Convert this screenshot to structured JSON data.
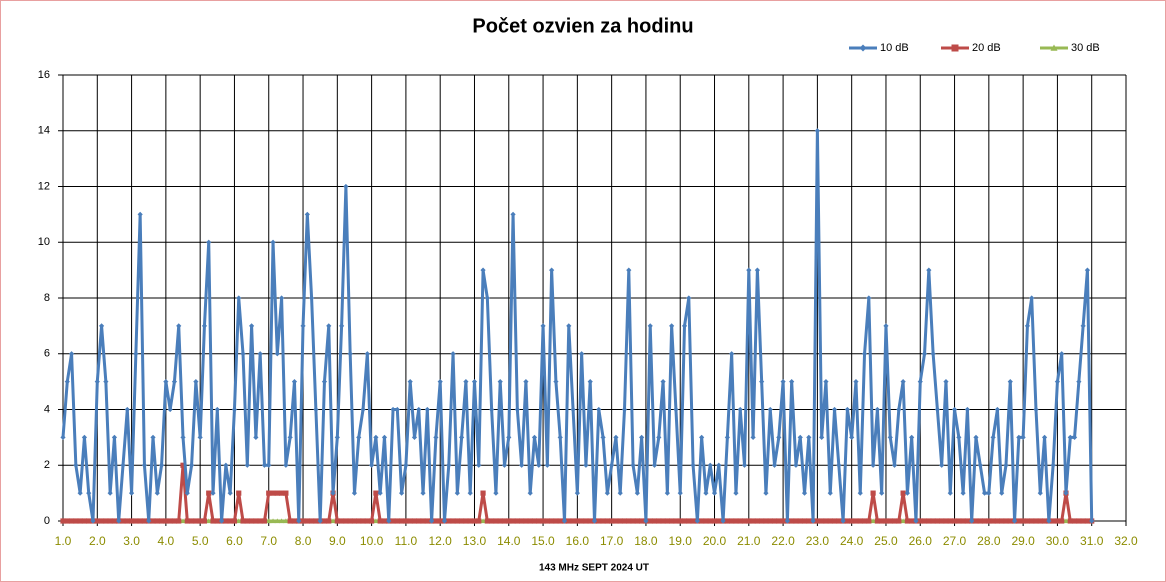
{
  "chart_data": {
    "type": "line",
    "title": "Počet ozvien za hodinu",
    "x_label": "143 MHz SEPT  2024  UT",
    "legend": "top-right",
    "grid": true,
    "xlim": [
      1,
      32
    ],
    "ylim": [
      0,
      16
    ],
    "yticks": [
      0,
      2,
      4,
      6,
      8,
      10,
      12,
      14,
      16
    ],
    "xticks": [
      {
        "value": 1,
        "label": "1.0"
      },
      {
        "value": 2,
        "label": "2.0"
      },
      {
        "value": 3,
        "label": "3.0"
      },
      {
        "value": 4,
        "label": "4.0"
      },
      {
        "value": 5,
        "label": "5.0"
      },
      {
        "value": 6,
        "label": "6.0"
      },
      {
        "value": 7,
        "label": "7.0"
      },
      {
        "value": 8,
        "label": "8.0"
      },
      {
        "value": 9,
        "label": "9.0"
      },
      {
        "value": 10,
        "label": "10.0"
      },
      {
        "value": 11,
        "label": "11.0"
      },
      {
        "value": 12,
        "label": "12.0"
      },
      {
        "value": 13,
        "label": "13.0"
      },
      {
        "value": 14,
        "label": "14.0"
      },
      {
        "value": 15,
        "label": "15.0"
      },
      {
        "value": 16,
        "label": "16.0"
      },
      {
        "value": 17,
        "label": "17.0"
      },
      {
        "value": 18,
        "label": "18.0"
      },
      {
        "value": 19,
        "label": "19.0"
      },
      {
        "value": 20,
        "label": "20.0"
      },
      {
        "value": 21,
        "label": "21.0"
      },
      {
        "value": 22,
        "label": "22.0"
      },
      {
        "value": 23,
        "label": "23.0"
      },
      {
        "value": 24,
        "label": "24.0"
      },
      {
        "value": 25,
        "label": "25.0"
      },
      {
        "value": 26,
        "label": "26.0"
      },
      {
        "value": 27,
        "label": "27.0"
      },
      {
        "value": 28,
        "label": "28.0"
      },
      {
        "value": 29,
        "label": "29.0"
      },
      {
        "value": 30,
        "label": "30.0"
      },
      {
        "value": 31,
        "label": "31.0"
      },
      {
        "value": 32,
        "label": "32.0"
      }
    ],
    "x": [
      1,
      1.125,
      1.25,
      1.375,
      1.5,
      1.625,
      1.75,
      1.875,
      2,
      2.125,
      2.25,
      2.375,
      2.5,
      2.625,
      2.75,
      2.875,
      3,
      3.125,
      3.25,
      3.375,
      3.5,
      3.625,
      3.75,
      3.875,
      4,
      4.125,
      4.25,
      4.375,
      4.5,
      4.625,
      4.75,
      4.875,
      5,
      5.125,
      5.25,
      5.375,
      5.5,
      5.625,
      5.75,
      5.875,
      6,
      6.125,
      6.25,
      6.375,
      6.5,
      6.625,
      6.75,
      6.875,
      7,
      7.125,
      7.25,
      7.375,
      7.5,
      7.625,
      7.75,
      7.875,
      8,
      8.125,
      8.25,
      8.375,
      8.5,
      8.625,
      8.75,
      8.875,
      9,
      9.125,
      9.25,
      9.375,
      9.5,
      9.625,
      9.75,
      9.875,
      10,
      10.125,
      10.25,
      10.375,
      10.5,
      10.625,
      10.75,
      10.875,
      11,
      11.125,
      11.25,
      11.375,
      11.5,
      11.625,
      11.75,
      11.875,
      12,
      12.125,
      12.25,
      12.375,
      12.5,
      12.625,
      12.75,
      12.875,
      13,
      13.125,
      13.25,
      13.375,
      13.5,
      13.625,
      13.75,
      13.875,
      14,
      14.125,
      14.25,
      14.375,
      14.5,
      14.625,
      14.75,
      14.875,
      15,
      15.125,
      15.25,
      15.375,
      15.5,
      15.625,
      15.75,
      15.875,
      16,
      16.125,
      16.25,
      16.375,
      16.5,
      16.625,
      16.75,
      16.875,
      17,
      17.125,
      17.25,
      17.375,
      17.5,
      17.625,
      17.75,
      17.875,
      18,
      18.125,
      18.25,
      18.375,
      18.5,
      18.625,
      18.75,
      18.875,
      19,
      19.125,
      19.25,
      19.375,
      19.5,
      19.625,
      19.75,
      19.875,
      20,
      20.125,
      20.25,
      20.375,
      20.5,
      20.625,
      20.75,
      20.875,
      21,
      21.125,
      21.25,
      21.375,
      21.5,
      21.625,
      21.75,
      21.875,
      22,
      22.125,
      22.25,
      22.375,
      22.5,
      22.625,
      22.75,
      22.875,
      23,
      23.125,
      23.25,
      23.375,
      23.5,
      23.625,
      23.75,
      23.875,
      24,
      24.125,
      24.25,
      24.375,
      24.5,
      24.625,
      24.75,
      24.875,
      25,
      25.125,
      25.25,
      25.375,
      25.5,
      25.625,
      25.75,
      25.875,
      26,
      26.125,
      26.25,
      26.375,
      26.5,
      26.625,
      26.75,
      26.875,
      27,
      27.125,
      27.25,
      27.375,
      27.5,
      27.625,
      27.75,
      27.875,
      28,
      28.125,
      28.25,
      28.375,
      28.5,
      28.625,
      28.75,
      28.875,
      29,
      29.125,
      29.25,
      29.375,
      29.5,
      29.625,
      29.75,
      29.875,
      30,
      30.125,
      30.25,
      30.375,
      30.5,
      30.625,
      30.75,
      30.875,
      31
    ],
    "series": [
      {
        "name": "10 dB",
        "color": "#4a7ebb",
        "marker": "diamond",
        "values": [
          3,
          5,
          6,
          2,
          1,
          3,
          1,
          0,
          5,
          7,
          5,
          1,
          3,
          0,
          2,
          4,
          1,
          6,
          11,
          2,
          0,
          3,
          1,
          2,
          5,
          4,
          5,
          7,
          3,
          1,
          2,
          5,
          3,
          7,
          10,
          1,
          4,
          0,
          2,
          1,
          4,
          8,
          6,
          2,
          7,
          3,
          6,
          2,
          2,
          10,
          6,
          8,
          2,
          3,
          5,
          0,
          7,
          11,
          8,
          4,
          0,
          5,
          7,
          1,
          3,
          7,
          12,
          6,
          1,
          3,
          4,
          6,
          2,
          3,
          1,
          3,
          0,
          4,
          4,
          1,
          2,
          5,
          3,
          4,
          1,
          4,
          0,
          3,
          5,
          0,
          2,
          6,
          1,
          3,
          5,
          1,
          5,
          2,
          9,
          8,
          4,
          1,
          5,
          2,
          3,
          11,
          4,
          2,
          5,
          1,
          3,
          2,
          7,
          2,
          9,
          5,
          3,
          0,
          7,
          4,
          1,
          6,
          2,
          5,
          0,
          4,
          3,
          1,
          2,
          3,
          1,
          4,
          9,
          2,
          1,
          3,
          0,
          7,
          2,
          3,
          5,
          1,
          7,
          4,
          1,
          7,
          8,
          2,
          0,
          3,
          1,
          2,
          1,
          2,
          0,
          3,
          6,
          1,
          4,
          2,
          9,
          3,
          9,
          5,
          1,
          4,
          2,
          3,
          5,
          0,
          5,
          2,
          3,
          1,
          3,
          0,
          14,
          3,
          5,
          1,
          4,
          2,
          0,
          4,
          3,
          5,
          1,
          6,
          8,
          2,
          4,
          1,
          7,
          3,
          2,
          4,
          5,
          1,
          3,
          0,
          5,
          6,
          9,
          6,
          4,
          2,
          5,
          1,
          4,
          3,
          1,
          4,
          0,
          3,
          2,
          1,
          1,
          3,
          4,
          1,
          2,
          5,
          0,
          3,
          3,
          7,
          8,
          4,
          1,
          3,
          0,
          2,
          5,
          6,
          1,
          3,
          3,
          5,
          7,
          9,
          0
        ]
      },
      {
        "name": "20 dB",
        "color": "#be4b48",
        "marker": "square",
        "values": [
          0,
          0,
          0,
          0,
          0,
          0,
          0,
          0,
          0,
          0,
          0,
          0,
          0,
          0,
          0,
          0,
          0,
          0,
          0,
          0,
          0,
          0,
          0,
          0,
          0,
          0,
          0,
          0,
          2,
          0,
          0,
          0,
          0,
          0,
          1,
          0,
          0,
          0,
          0,
          0,
          0,
          1,
          0,
          0,
          0,
          0,
          0,
          0,
          1,
          1,
          1,
          1,
          1,
          0,
          0,
          0,
          0,
          0,
          0,
          0,
          0,
          0,
          0,
          1,
          0,
          0,
          0,
          0,
          0,
          0,
          0,
          0,
          0,
          1,
          0,
          0,
          0,
          0,
          0,
          0,
          0,
          0,
          0,
          0,
          0,
          0,
          0,
          0,
          0,
          0,
          0,
          0,
          0,
          0,
          0,
          0,
          0,
          0,
          1,
          0,
          0,
          0,
          0,
          0,
          0,
          0,
          0,
          0,
          0,
          0,
          0,
          0,
          0,
          0,
          0,
          0,
          0,
          0,
          0,
          0,
          0,
          0,
          0,
          0,
          0,
          0,
          0,
          0,
          0,
          0,
          0,
          0,
          0,
          0,
          0,
          0,
          0,
          0,
          0,
          0,
          0,
          0,
          0,
          0,
          0,
          0,
          0,
          0,
          0,
          0,
          0,
          0,
          0,
          0,
          0,
          0,
          0,
          0,
          0,
          0,
          0,
          0,
          0,
          0,
          0,
          0,
          0,
          0,
          0,
          0,
          0,
          0,
          0,
          0,
          0,
          0,
          0,
          0,
          0,
          0,
          0,
          0,
          0,
          0,
          0,
          0,
          0,
          0,
          0,
          1,
          0,
          0,
          0,
          0,
          0,
          0,
          1,
          0,
          0,
          0,
          0,
          0,
          0,
          0,
          0,
          0,
          0,
          0,
          0,
          0,
          0,
          0,
          0,
          0,
          0,
          0,
          0,
          0,
          0,
          0,
          0,
          0,
          0,
          0,
          0,
          0,
          0,
          0,
          0,
          0,
          0,
          0,
          0,
          0,
          1,
          0,
          0,
          0,
          0,
          0,
          0
        ]
      },
      {
        "name": "30 dB",
        "color": "#98b954",
        "marker": "triangle",
        "values": [
          0,
          0,
          0,
          0,
          0,
          0,
          0,
          0,
          0,
          0,
          0,
          0,
          0,
          0,
          0,
          0,
          0,
          0,
          0,
          0,
          0,
          0,
          0,
          0,
          0,
          0,
          0,
          0,
          0,
          0,
          0,
          0,
          0,
          0,
          0,
          0,
          0,
          0,
          0,
          0,
          0,
          0,
          0,
          0,
          0,
          0,
          0,
          0,
          0,
          0,
          0,
          0,
          0,
          0,
          0,
          0,
          0,
          0,
          0,
          0,
          0,
          0,
          0,
          0,
          0,
          0,
          0,
          0,
          0,
          0,
          0,
          0,
          0,
          0,
          0,
          0,
          0,
          0,
          0,
          0,
          0,
          0,
          0,
          0,
          0,
          0,
          0,
          0,
          0,
          0,
          0,
          0,
          0,
          0,
          0,
          0,
          0,
          0,
          0,
          0,
          0,
          0,
          0,
          0,
          0,
          0,
          0,
          0,
          0,
          0,
          0,
          0,
          0,
          0,
          0,
          0,
          0,
          0,
          0,
          0,
          0,
          0,
          0,
          0,
          0,
          0,
          0,
          0,
          0,
          0,
          0,
          0,
          0,
          0,
          0,
          0,
          0,
          0,
          0,
          0,
          0,
          0,
          0,
          0,
          0,
          0,
          0,
          0,
          0,
          0,
          0,
          0,
          0,
          0,
          0,
          0,
          0,
          0,
          0,
          0,
          0,
          0,
          0,
          0,
          0,
          0,
          0,
          0,
          0,
          0,
          0,
          0,
          0,
          0,
          0,
          0,
          0,
          0,
          0,
          0,
          0,
          0,
          0,
          0,
          0,
          0,
          0,
          0,
          0,
          0,
          0,
          0,
          0,
          0,
          0,
          0,
          0,
          0,
          0,
          0,
          0,
          0,
          0,
          0,
          0,
          0,
          0,
          0,
          0,
          0,
          0,
          0,
          0,
          0,
          0,
          0,
          0,
          0,
          0,
          0,
          0,
          0,
          0,
          0,
          0,
          0,
          0,
          0,
          0,
          0,
          0,
          0,
          0,
          0,
          0,
          0,
          0,
          0,
          0,
          0,
          0
        ]
      }
    ]
  }
}
